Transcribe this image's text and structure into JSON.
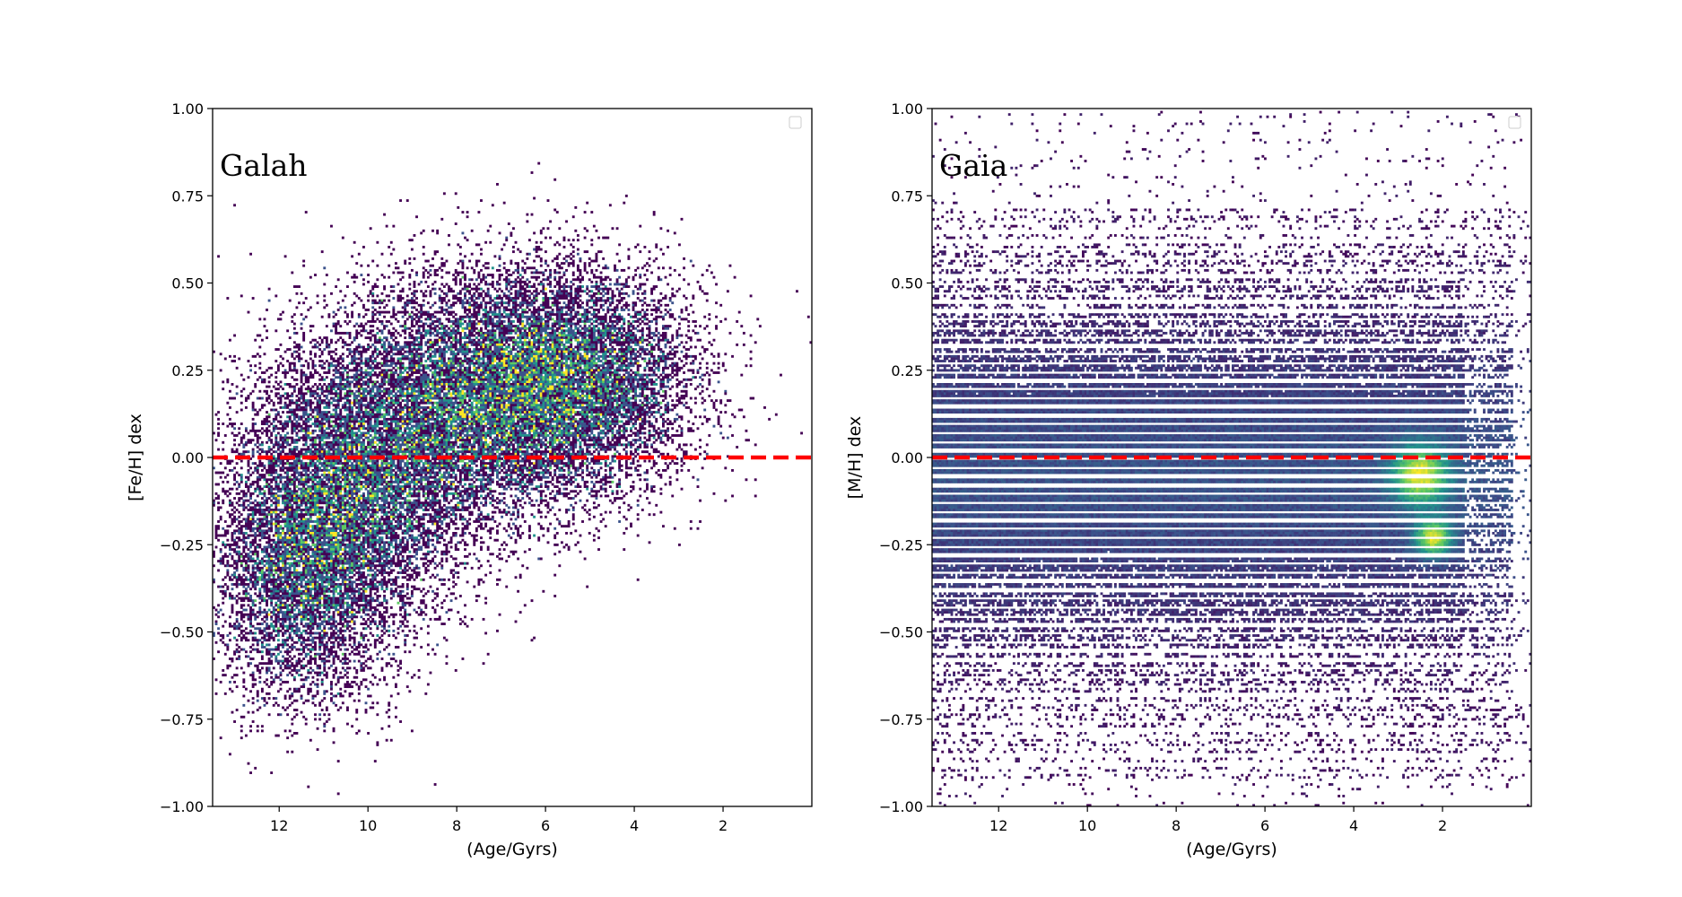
{
  "chart_data": [
    {
      "type": "heatmap",
      "panel_label": "Galah",
      "xlabel": "(Age/Gyrs)",
      "ylabel": "[Fe/H] dex",
      "xlim": [
        13.5,
        0
      ],
      "ylim": [
        -1.0,
        1.0
      ],
      "x_axis_inverted": true,
      "xticks": [
        12,
        10,
        8,
        6,
        4,
        2
      ],
      "xtick_labels": [
        "12",
        "10",
        "8",
        "6",
        "4",
        "2"
      ],
      "yticks": [
        -1.0,
        -0.75,
        -0.5,
        -0.25,
        0.0,
        0.25,
        0.5,
        0.75,
        1.0
      ],
      "ytick_labels": [
        "−1.00",
        "−0.75",
        "−0.50",
        "−0.25",
        "0.00",
        "0.25",
        "0.50",
        "0.75",
        "1.00"
      ],
      "reference_line": {
        "y": 0.0,
        "color": "#ff0000",
        "style": "dashed"
      },
      "colormap": "viridis",
      "legend": "top-right",
      "grid": false,
      "density_clusters": [
        {
          "age": 10.5,
          "feh": -0.1,
          "sigma_age": 1.3,
          "sigma_feh": 0.2,
          "weight": 0.9
        },
        {
          "age": 8.0,
          "feh": 0.15,
          "sigma_age": 1.6,
          "sigma_feh": 0.18,
          "weight": 1.0
        },
        {
          "age": 5.5,
          "feh": 0.22,
          "sigma_age": 1.4,
          "sigma_feh": 0.16,
          "weight": 1.0
        },
        {
          "age": 11.5,
          "feh": -0.35,
          "sigma_age": 1.0,
          "sigma_feh": 0.18,
          "weight": 0.5
        }
      ]
    },
    {
      "type": "heatmap",
      "panel_label": "Gaia",
      "xlabel": "(Age/Gyrs)",
      "ylabel": "[M/H] dex",
      "xlim": [
        13.5,
        0
      ],
      "ylim": [
        -1.0,
        1.0
      ],
      "x_axis_inverted": true,
      "xticks": [
        12,
        10,
        8,
        6,
        4,
        2
      ],
      "xtick_labels": [
        "12",
        "10",
        "8",
        "6",
        "4",
        "2"
      ],
      "yticks": [
        -1.0,
        -0.75,
        -0.5,
        -0.25,
        0.0,
        0.25,
        0.5,
        0.75,
        1.0
      ],
      "ytick_labels": [
        "−1.00",
        "−0.75",
        "−0.50",
        "−0.25",
        "0.00",
        "0.25",
        "0.50",
        "0.75",
        "1.00"
      ],
      "reference_line": {
        "y": 0.0,
        "color": "#ff0000",
        "style": "dashed"
      },
      "colormap": "viridis",
      "legend": "top-right",
      "grid": false,
      "metallicity_grid_step": 0.025,
      "hotspots": [
        {
          "age": 2.5,
          "mh": -0.05,
          "sigma_age": 0.6,
          "sigma_mh": 0.08
        },
        {
          "age": 2.2,
          "mh": -0.23,
          "sigma_age": 0.4,
          "sigma_mh": 0.05
        }
      ]
    }
  ],
  "colors": {
    "reference_line": "#ff0000",
    "axes": "#000000",
    "background": "#ffffff"
  }
}
